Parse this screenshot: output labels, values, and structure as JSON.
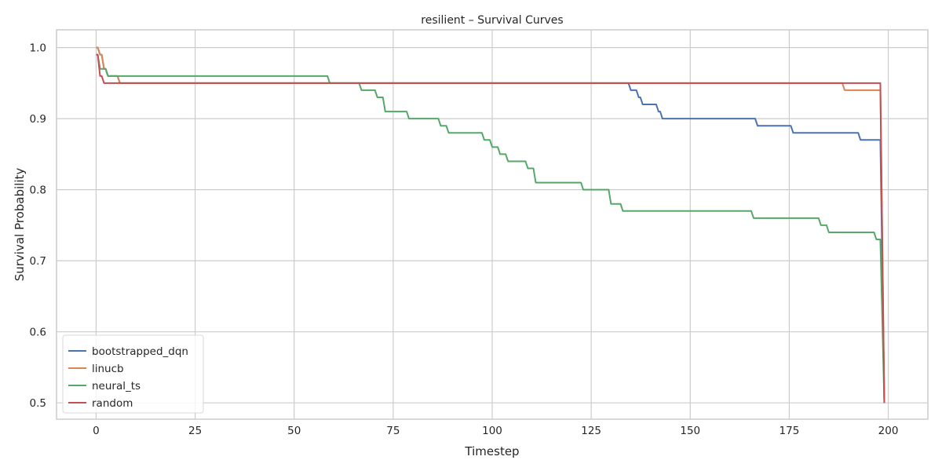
{
  "chart_data": {
    "type": "line",
    "title": "resilient – Survival Curves",
    "xlabel": "Timestep",
    "ylabel": "Survival Probability",
    "xlim": [
      -10,
      210
    ],
    "ylim": [
      0.477,
      1.025
    ],
    "x_ticks": [
      0,
      25,
      50,
      75,
      100,
      125,
      150,
      175,
      200
    ],
    "y_ticks": [
      0.5,
      0.6,
      0.7,
      0.8,
      0.9,
      1.0
    ],
    "grid": true,
    "legend_position": "lower-left",
    "series": [
      {
        "name": "bootstrapped_dqn",
        "color": "#4c72b0",
        "steps": [
          [
            0,
            1.0
          ],
          [
            1,
            0.99
          ],
          [
            2,
            0.97
          ],
          [
            3,
            0.96
          ],
          [
            6,
            0.95
          ],
          [
            135,
            0.94
          ],
          [
            137,
            0.93
          ],
          [
            138,
            0.92
          ],
          [
            142,
            0.91
          ],
          [
            143,
            0.9
          ],
          [
            167,
            0.89
          ],
          [
            176,
            0.88
          ],
          [
            193,
            0.87
          ],
          [
            198,
            0.87
          ]
        ],
        "drop": [
          199,
          0.5
        ]
      },
      {
        "name": "linucb",
        "color": "#dd8452",
        "steps": [
          [
            0,
            1.0
          ],
          [
            1,
            0.99
          ],
          [
            2,
            0.97
          ],
          [
            3,
            0.96
          ],
          [
            6,
            0.95
          ],
          [
            189,
            0.94
          ],
          [
            198,
            0.94
          ]
        ],
        "drop": [
          199,
          0.5
        ]
      },
      {
        "name": "neural_ts",
        "color": "#55a868",
        "steps": [
          [
            0,
            0.99
          ],
          [
            1,
            0.97
          ],
          [
            3,
            0.96
          ],
          [
            59,
            0.95
          ],
          [
            67,
            0.94
          ],
          [
            71,
            0.93
          ],
          [
            73,
            0.91
          ],
          [
            79,
            0.9
          ],
          [
            87,
            0.89
          ],
          [
            89,
            0.88
          ],
          [
            98,
            0.87
          ],
          [
            100,
            0.86
          ],
          [
            102,
            0.85
          ],
          [
            104,
            0.84
          ],
          [
            109,
            0.83
          ],
          [
            111,
            0.81
          ],
          [
            123,
            0.8
          ],
          [
            130,
            0.78
          ],
          [
            133,
            0.77
          ],
          [
            166,
            0.76
          ],
          [
            183,
            0.75
          ],
          [
            185,
            0.74
          ],
          [
            197,
            0.73
          ],
          [
            198,
            0.73
          ]
        ],
        "drop": [
          199,
          0.5
        ]
      },
      {
        "name": "random",
        "color": "#c44e52",
        "steps": [
          [
            0,
            0.99
          ],
          [
            1,
            0.96
          ],
          [
            2,
            0.95
          ],
          [
            198,
            0.95
          ]
        ],
        "drop": [
          199,
          0.5
        ]
      }
    ]
  }
}
